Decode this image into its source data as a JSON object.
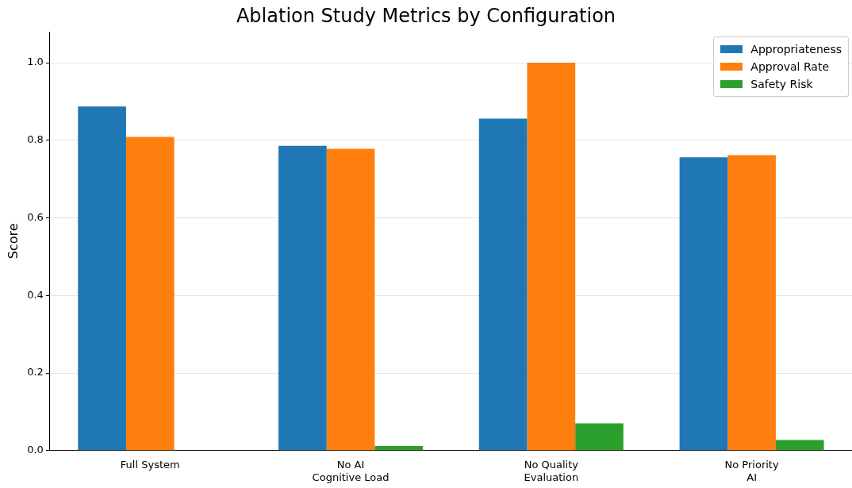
{
  "chart_data": {
    "type": "bar",
    "title": "Ablation Study Metrics by Configuration",
    "ylabel": "Score",
    "categories": [
      "Full System",
      "No AI\nCognitive Load",
      "No Quality\nEvaluation",
      "No Priority\nAI"
    ],
    "series": [
      {
        "name": "Appropriateness",
        "color": "#1f77b4",
        "values": [
          0.887,
          0.786,
          0.856,
          0.756
        ]
      },
      {
        "name": "Approval Rate",
        "color": "#ff7f0e",
        "values": [
          0.809,
          0.778,
          1.0,
          0.762
        ]
      },
      {
        "name": "Safety Risk",
        "color": "#2ca02c",
        "values": [
          0,
          0.012,
          0.07,
          0.027
        ]
      }
    ],
    "ylim": [
      0,
      1.08
    ],
    "yticks": [
      {
        "value": 0,
        "label": "0.0"
      },
      0.2,
      0.4,
      0.6,
      0.8,
      {
        "value": 1,
        "label": "1.0"
      }
    ],
    "grid": "y",
    "legend": "top right"
  }
}
